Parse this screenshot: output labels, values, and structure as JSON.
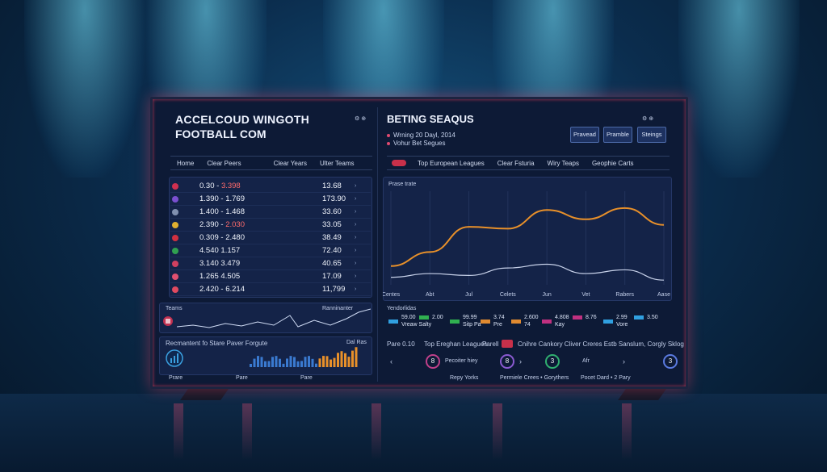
{
  "left": {
    "title_line1": "ACCELCOUD WINGOTH",
    "title_line2": "FOOTBALL COM",
    "header_icons": "⚙ ⊕",
    "tabs": [
      "Home",
      "Clear Peers",
      "Clear Years",
      "Ulter Teams"
    ],
    "rows": [
      {
        "range": "0.30 - ",
        "hl": "3.398",
        "value": "13.68",
        "color": "#d03050"
      },
      {
        "range": "1.390 - 1.769",
        "hl": "",
        "value": "173.90",
        "color": "#7a4fd0"
      },
      {
        "range": "1.400 - 1.468",
        "hl": "",
        "value": "33.60",
        "color": "#8090b0"
      },
      {
        "range": "2.390 - ",
        "hl": "2.030",
        "value": "33.05",
        "color": "#e0b030"
      },
      {
        "range": "0.309 - 2.480",
        "hl": "",
        "value": "38.49",
        "color": "#d03040"
      },
      {
        "range": "4.540   1.157",
        "hl": "",
        "value": "72.40",
        "color": "#30a050"
      },
      {
        "range": "3.140   3.479",
        "hl": "",
        "value": "40.65",
        "color": "#d04060"
      },
      {
        "range": "1.265   4.505",
        "hl": "",
        "value": "17.09",
        "color": "#e05070"
      },
      {
        "range": "2.420 - 6.214",
        "hl": "",
        "value": "11,799",
        "color": "#e04a60"
      }
    ],
    "mini_left_label": "Teams",
    "mini_right_label": "Ranninanter",
    "stats_label": "Recmantent fo Stare Paver Forgute",
    "bottom_labels": [
      "Prare",
      "Pare",
      "Pare"
    ],
    "stats_tag": "Dal Ras"
  },
  "right": {
    "title": "BETING SEAQUS",
    "subtitle1": "Wrning 20 Dayl, 2014",
    "subtitle2": "Vohur Bet Segues",
    "header_icons": "⚙ ⊕",
    "buttons": [
      "Pravead",
      "Pramble",
      "Steings"
    ],
    "tabs": [
      "Top European Leagues",
      "Clear Fsturia",
      "Wiry Teaps",
      "Geophie Carts"
    ],
    "chart_label": "Prase trate",
    "x_ticks": [
      "Centes",
      "Abt",
      "Jul",
      "Celets",
      "Jun",
      "Vet",
      "Rabers",
      "Aase"
    ],
    "stats_title": "Yendorlidas",
    "stats": [
      {
        "top": "59.00",
        "bottom": "Vreaw Salty",
        "color": "#30a0e0"
      },
      {
        "top": "2.00",
        "bottom": "",
        "color": "#30b050"
      },
      {
        "top": "99.99",
        "bottom": "Sitp Pa",
        "color": "#30b050"
      },
      {
        "top": "3.74",
        "bottom": "Pre",
        "color": "#e08a30"
      },
      {
        "top": "2.600",
        "bottom": "74",
        "color": "#e08a30"
      },
      {
        "top": "4.808",
        "bottom": "Kay",
        "color": "#c03080"
      },
      {
        "top": "8.76",
        "bottom": "",
        "color": "#c03080"
      },
      {
        "top": "2.99",
        "bottom": "Vore",
        "color": "#30a0e0"
      },
      {
        "top": "3.50",
        "bottom": "",
        "color": "#30a0e0"
      }
    ],
    "bottom_bar": {
      "left_label": "Pare 0.10",
      "league": "Top Ereghan Leagues",
      "badge_label": "Parell",
      "rest": "Cnihre Cankory Cliver Creres Estb Sanslum, Corgly Sklog"
    },
    "circles": [
      {
        "label": "8",
        "color": "#c0408a"
      },
      {
        "label": "8",
        "color": "#8a5ad0"
      },
      {
        "label": "3",
        "color": "#30b070"
      },
      {
        "label": "3",
        "color": "#5a7ae0"
      }
    ],
    "circle_texts": [
      "Pecoiter hiey",
      "Afr"
    ],
    "footer": [
      "Repy Yorks",
      "Permiele Crees • Gorythers",
      "Pocet Dard • 2 Pary"
    ]
  },
  "chart_data": {
    "type": "line",
    "title": "Prase trate",
    "categories": [
      "Centes",
      "Abt",
      "Jul",
      "Celets",
      "Jun",
      "Vet",
      "Rabers",
      "Aase"
    ],
    "series": [
      {
        "name": "orange",
        "color": "#e8902a",
        "values": [
          20,
          35,
          62,
          60,
          80,
          70,
          82,
          64
        ]
      },
      {
        "name": "white",
        "color": "#c8d2ea",
        "values": [
          8,
          12,
          10,
          18,
          22,
          12,
          16,
          5
        ]
      }
    ],
    "ylim": [
      0,
      100
    ]
  }
}
